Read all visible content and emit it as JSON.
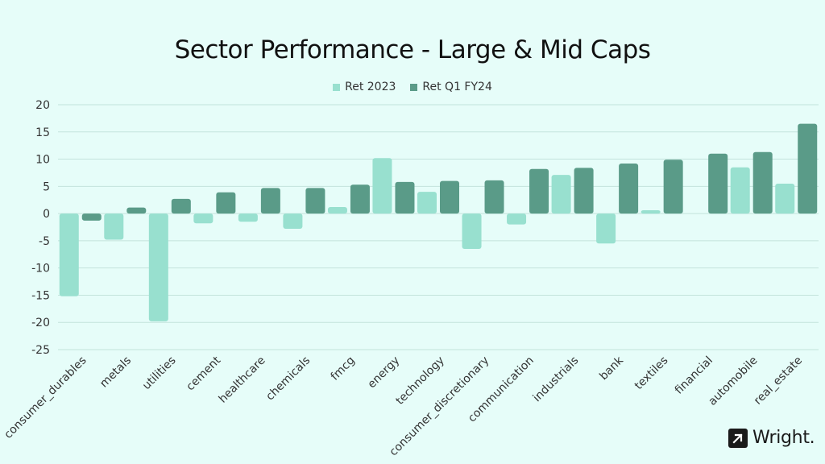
{
  "chart_data": {
    "type": "bar",
    "title": "Sector Performance - Large & Mid Caps",
    "xlabel": "",
    "ylabel": "",
    "ylim": [
      -25,
      20
    ],
    "yticks": [
      20,
      15,
      10,
      5,
      0,
      -5,
      -10,
      -15,
      -20,
      -25
    ],
    "grid": true,
    "legend_position": "top-center",
    "categories": [
      "consumer_durables",
      "metals",
      "utilities",
      "cement",
      "healthcare",
      "chemicals",
      "fmcg",
      "energy",
      "technology",
      "consumer_discretionary",
      "communication",
      "industrials",
      "bank",
      "textiles",
      "financial",
      "automobile",
      "real_estate"
    ],
    "series": [
      {
        "name": "Ret 2023",
        "color": "#98e0cf",
        "values": [
          -15.2,
          -4.8,
          -19.8,
          -1.8,
          -1.5,
          -2.8,
          1.2,
          10.2,
          4.0,
          -6.5,
          -2.0,
          7.1,
          -5.5,
          0.6,
          0.0,
          8.5,
          5.5
        ]
      },
      {
        "name": "Ret Q1 FY24",
        "color": "#5a9b88",
        "values": [
          -1.3,
          1.1,
          2.7,
          3.9,
          4.7,
          4.7,
          5.3,
          5.8,
          6.0,
          6.1,
          8.2,
          8.4,
          9.2,
          9.9,
          11.0,
          11.3,
          16.5
        ]
      }
    ]
  },
  "brand": {
    "name": "Wright.",
    "icon": "arrow-up-right-icon"
  }
}
